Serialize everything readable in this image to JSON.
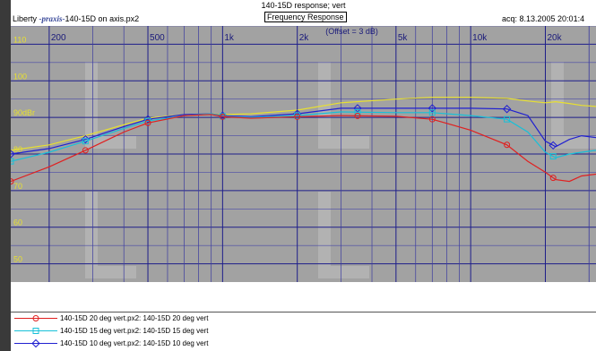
{
  "header": {
    "title": "140-15D response; vert",
    "subtitle": "Frequency Response",
    "brand_left": "Liberty",
    "brand_italic": "-praxis-",
    "brand_right": "140-15D on axis.px2",
    "acq": "acq: 8.13.2005 20:01:4"
  },
  "chart_data": {
    "type": "line",
    "title": "140-15D response; vert",
    "subtitle": "Frequency Response",
    "annotation": "(Offset = 3 dB)",
    "xscale": "log",
    "xlim": [
      140,
      32000
    ],
    "ylim": [
      45,
      115
    ],
    "x_ticks": [
      {
        "value": 200,
        "label": "200"
      },
      {
        "value": 500,
        "label": "500"
      },
      {
        "value": 1000,
        "label": "1k"
      },
      {
        "value": 2000,
        "label": "2k"
      },
      {
        "value": 5000,
        "label": "5k"
      },
      {
        "value": 10000,
        "label": "10k"
      },
      {
        "value": 20000,
        "label": "20k"
      }
    ],
    "y_ticks": [
      {
        "value": 110,
        "label": "110"
      },
      {
        "value": 100,
        "label": "100"
      },
      {
        "value": 90,
        "label": "90dBr"
      },
      {
        "value": 80,
        "label": "80"
      },
      {
        "value": 70,
        "label": "70"
      },
      {
        "value": 60,
        "label": "60"
      },
      {
        "value": 50,
        "label": "50"
      }
    ],
    "grid": true,
    "legend_position": "bottom",
    "series": [
      {
        "name": "140-15D 20 deg vert.px2:  140-15D 20 deg vert",
        "color": "#e02020",
        "marker": "circle",
        "x": [
          140,
          200,
          280,
          400,
          500,
          700,
          900,
          1000,
          1300,
          2000,
          3000,
          5000,
          7000,
          10000,
          14000,
          17000,
          20000,
          22000,
          25000,
          28000,
          32000
        ],
        "y": [
          72.5,
          76.5,
          81,
          86,
          88.5,
          90.5,
          90.8,
          90.2,
          89.8,
          90.2,
          90.5,
          90.3,
          89.5,
          86.5,
          82.5,
          78,
          75,
          73,
          72.5,
          74,
          74.5
        ],
        "marker_x": [
          140,
          280,
          500,
          1000,
          2000,
          3500,
          7000,
          14000,
          21500
        ]
      },
      {
        "name": "140-15D 15 deg vert.px2:  140-15D 15 deg vert",
        "color": "#18c0d8",
        "marker": "square",
        "x": [
          140,
          200,
          280,
          400,
          500,
          700,
          900,
          1000,
          1300,
          2000,
          3000,
          5000,
          7000,
          10000,
          14000,
          17000,
          20000,
          22000,
          25000,
          28000,
          32000
        ],
        "y": [
          78,
          80.5,
          83.5,
          87,
          89,
          90.5,
          91,
          90.3,
          90,
          90.5,
          91.5,
          91.3,
          91.3,
          90.5,
          89.5,
          86,
          80.5,
          79,
          80,
          80.5,
          81
        ],
        "marker_x": [
          140,
          280,
          500,
          1000,
          2000,
          3500,
          7000,
          14000,
          21500
        ]
      },
      {
        "name": "140-15D 10 deg vert.px2:  140-15D 10 deg vert",
        "color": "#2020d0",
        "marker": "diamond",
        "x": [
          140,
          200,
          280,
          400,
          500,
          700,
          900,
          1000,
          1300,
          2000,
          3000,
          5000,
          7000,
          10000,
          14000,
          17000,
          20000,
          22000,
          25000,
          28000,
          32000
        ],
        "y": [
          80,
          81.5,
          84,
          87.5,
          89.5,
          90.8,
          91,
          90.5,
          90.2,
          91,
          92.5,
          92.5,
          92.5,
          92.5,
          92.3,
          90.5,
          83.5,
          82,
          84,
          85,
          84.5
        ],
        "marker_x": [
          140,
          280,
          500,
          1000,
          2000,
          3500,
          7000,
          14000,
          21500
        ]
      },
      {
        "name": "140-15D on axis.px2",
        "color": "#e8e030",
        "marker": "none",
        "x": [
          140,
          200,
          280,
          400,
          500,
          700,
          900,
          1000,
          1300,
          2000,
          3000,
          5000,
          7000,
          10000,
          14000,
          17000,
          20000,
          22000,
          25000,
          28000,
          32000
        ],
        "y": [
          81,
          82.5,
          85,
          88,
          89.8,
          90.8,
          91,
          90.8,
          91,
          92,
          94,
          95,
          95.5,
          95.5,
          95.2,
          94.5,
          94,
          94.3,
          93.8,
          93.3,
          93
        ],
        "marker_x": []
      }
    ]
  },
  "legend": [
    {
      "label": "140-15D 20 deg vert.px2:  140-15D 20 deg vert",
      "color": "#e02020",
      "marker": "circle"
    },
    {
      "label": "140-15D 15 deg vert.px2:  140-15D 15 deg vert",
      "color": "#18c0d8",
      "marker": "square"
    },
    {
      "label": "140-15D 10 deg vert.px2:  140-15D 10 deg vert",
      "color": "#2020d0",
      "marker": "diamond"
    }
  ]
}
